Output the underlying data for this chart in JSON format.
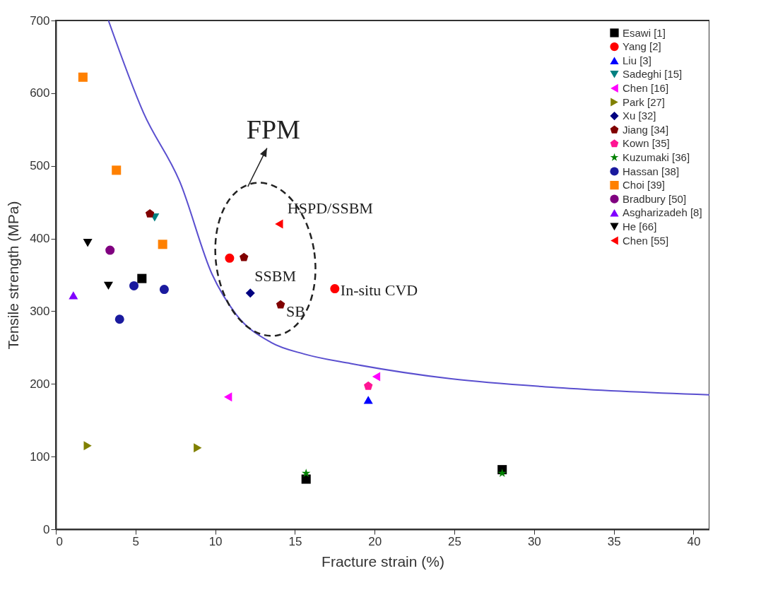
{
  "chart_data": {
    "type": "scatter",
    "xlabel": "Fracture strain (%)",
    "ylabel": "Tensile strength (MPa)",
    "xlim": [
      0,
      41
    ],
    "xticks": [
      0,
      5,
      10,
      15,
      20,
      25,
      30,
      35,
      40
    ],
    "ylim": [
      0,
      700
    ],
    "yticks": [
      0,
      100,
      200,
      300,
      400,
      500,
      600,
      700
    ],
    "grid": false,
    "legend": "top right",
    "series": [
      {
        "name": "Esawi [1]",
        "color": "#000000",
        "marker": "square",
        "x": [
          5.4,
          15.7,
          28
        ],
        "values": [
          345,
          69,
          82
        ]
      },
      {
        "name": "Yang [2]",
        "color": "#ff0000",
        "marker": "circle",
        "x": [
          10.9,
          17.5
        ],
        "values": [
          373,
          331
        ]
      },
      {
        "name": "Liu [3]",
        "color": "#0000ff",
        "marker": "triangle",
        "x": [
          19.6
        ],
        "values": [
          178
        ]
      },
      {
        "name": "Sadeghi [15]",
        "color": "#008080",
        "marker": "triangle-down",
        "x": [
          6.2
        ],
        "values": [
          429
        ]
      },
      {
        "name": "Chen [16]",
        "color": "#ff00ff",
        "marker": "triangle-left",
        "x": [
          10.8,
          20.1
        ],
        "values": [
          182,
          210
        ]
      },
      {
        "name": "Park [27]",
        "color": "#808000",
        "marker": "triangle-right",
        "x": [
          2.0,
          8.9
        ],
        "values": [
          115,
          112
        ]
      },
      {
        "name": "Xu [32]",
        "color": "#000080",
        "marker": "diamond",
        "x": [
          12.2
        ],
        "values": [
          325
        ]
      },
      {
        "name": "Jiang [34]",
        "color": "#800000",
        "x": [
          5.9,
          11.8,
          14.1
        ],
        "values": [
          434,
          374,
          309
        ]
      },
      {
        "name": "Kown [35]",
        "color": "#ff1493",
        "x": [
          19.6
        ],
        "values": [
          197
        ]
      },
      {
        "name": "Kuzumaki [36]",
        "color": "#008000",
        "marker": "star",
        "x": [
          15.7,
          28
        ],
        "values": [
          77,
          77
        ]
      },
      {
        "name": "Hassan [38]",
        "color": "#1a1a9e",
        "marker": "circle",
        "x": [
          4.9,
          6.8,
          4.0
        ],
        "values": [
          335,
          330,
          289
        ]
      },
      {
        "name": "Choi [39]",
        "color": "#ff8000",
        "marker": "square",
        "x": [
          1.7,
          3.8,
          6.7
        ],
        "values": [
          622,
          494,
          392
        ]
      },
      {
        "name": "Bradbury [50]",
        "color": "#800080",
        "marker": "circle",
        "x": [
          3.4
        ],
        "values": [
          384
        ]
      },
      {
        "name": "Asgharizadeh [8]",
        "color": "#8000ff",
        "marker": "triangle",
        "x": [
          1.1
        ],
        "values": [
          322
        ]
      },
      {
        "name": "He [66]",
        "color": "#000000",
        "marker": "triangle-down",
        "x": [
          2.0,
          3.3
        ],
        "values": [
          394,
          335
        ]
      },
      {
        "name": "Chen [55]",
        "color": "#ff0000",
        "marker": "triangle-left",
        "x": [
          14.0
        ],
        "values": [
          420
        ]
      },
      {
        "type": "line",
        "color": "#5a4fcf",
        "marker": "none",
        "x": [
          3.3,
          5.5,
          7.8,
          9.8,
          11.3,
          13.5,
          15.6,
          18.5,
          24.8,
          31.4,
          41
        ],
        "values": [
          700,
          573,
          477,
          351,
          296,
          257,
          241,
          228,
          207,
          195,
          185
        ]
      }
    ],
    "annotations": [
      "FPM",
      {
        "text": "HSPD/SSBM",
        "x": 14.0,
        "y": 420
      },
      {
        "text": "SSBM",
        "x": 12.2,
        "y": 325
      },
      {
        "text": "SB",
        "x": 14.1,
        "y": 309
      },
      {
        "text": "In-situ CVD",
        "x": 17.5,
        "y": 331
      }
    ]
  }
}
